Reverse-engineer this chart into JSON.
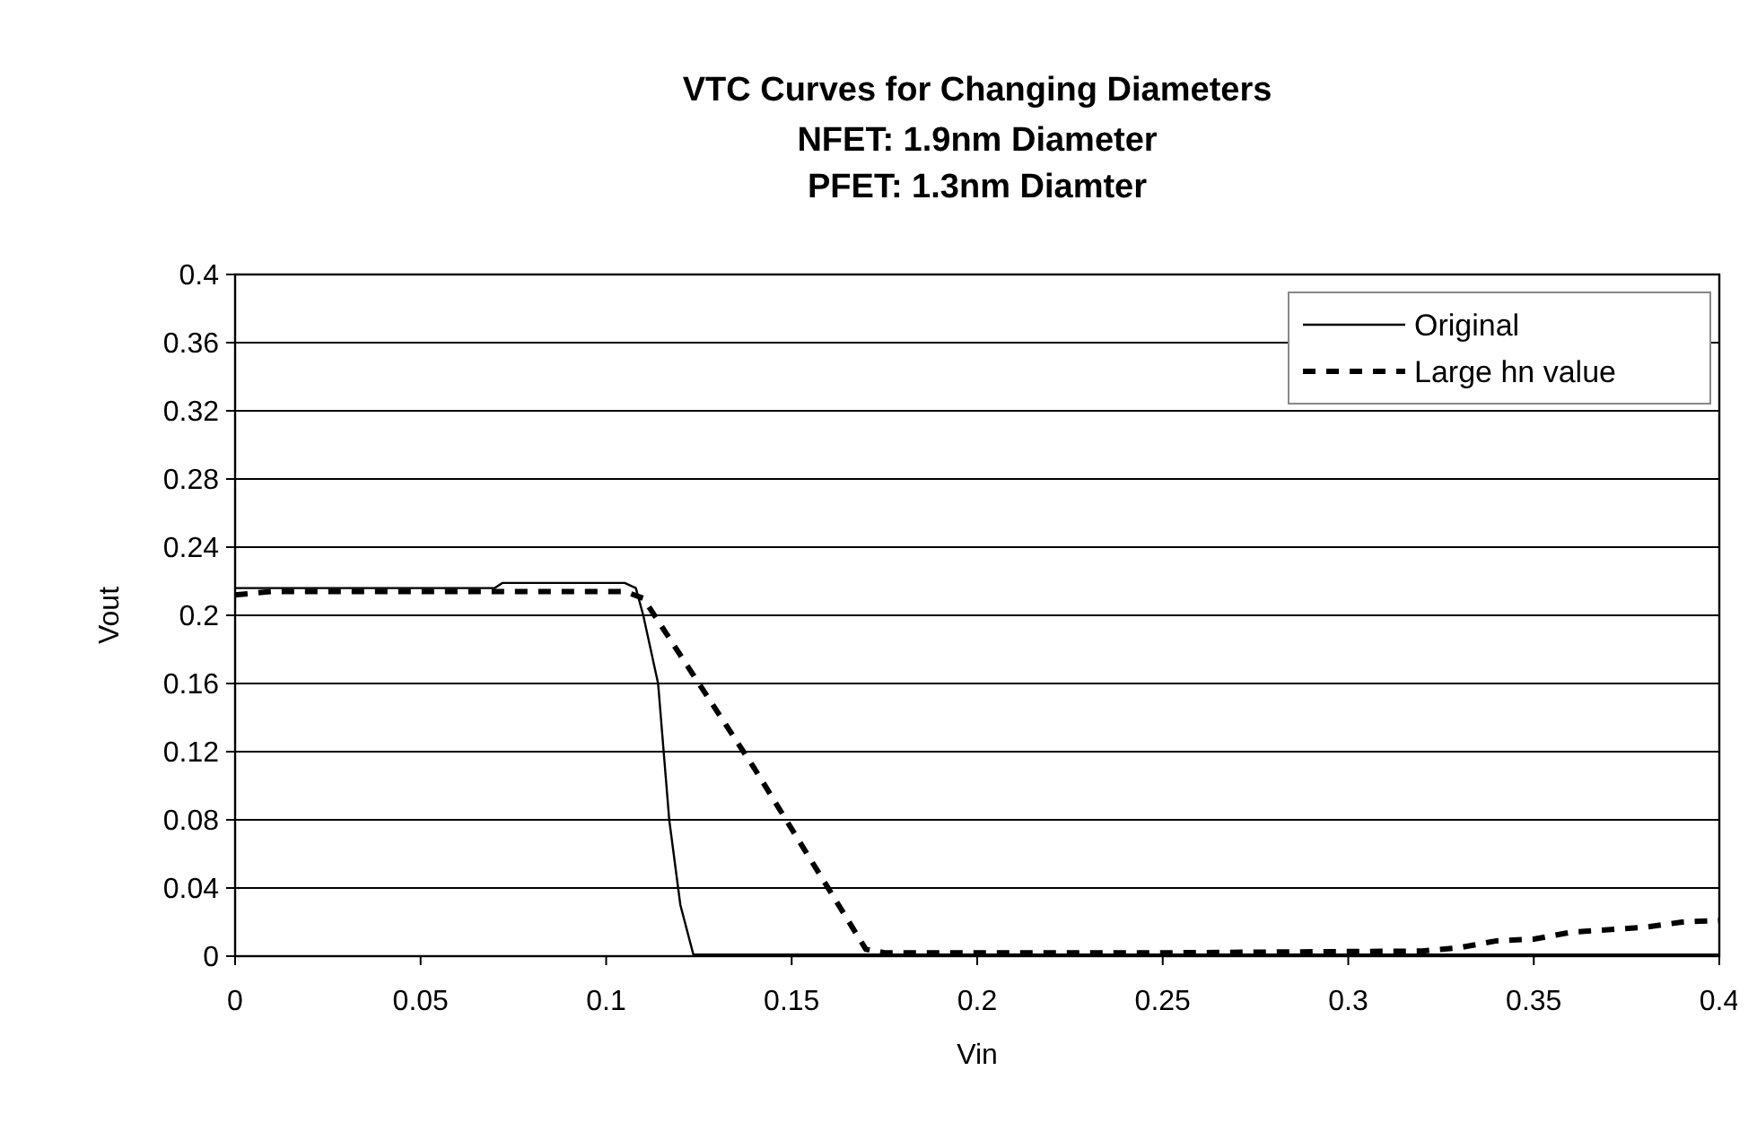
{
  "chart_data": {
    "type": "line",
    "title": "VTC Curves for Changing Diameters",
    "subtitle": "NFET: 1.9nm Diameter\nPFET: 1.3nm Diamter",
    "xlabel": "Vin",
    "ylabel": "Vout",
    "xlim": [
      0,
      0.4
    ],
    "xticks": [
      0,
      0.05,
      0.1,
      0.15,
      0.2,
      0.25,
      0.3,
      0.35,
      0.4
    ],
    "ylim": [
      0,
      0.4
    ],
    "yticks": [
      0,
      0.04,
      0.08,
      0.12,
      0.16,
      0.2,
      0.24,
      0.28,
      0.32,
      0.36,
      0.4
    ],
    "grid": "y",
    "legend": "top right",
    "series": [
      {
        "name": "Original",
        "color": "#000000",
        "line_style": "solid",
        "x": [
          0,
          0.07,
          0.072,
          0.105,
          0.108,
          0.11,
          0.114,
          0.117,
          0.12,
          0.1235,
          0.13,
          0.2,
          0.3,
          0.4
        ],
        "values": [
          0.216,
          0.216,
          0.219,
          0.219,
          0.216,
          0.2,
          0.16,
          0.08,
          0.03,
          0.001,
          0.001,
          0.001,
          0.001,
          0.001
        ]
      },
      {
        "name": "Large hn value",
        "color": "#000000",
        "line_style": "dashed",
        "x": [
          0,
          0.01,
          0.105,
          0.11,
          0.14,
          0.17,
          0.175,
          0.25,
          0.32,
          0.33,
          0.34,
          0.35,
          0.36,
          0.38,
          0.39,
          0.4
        ],
        "values": [
          0.212,
          0.214,
          0.214,
          0.21,
          0.11,
          0.004,
          0.002,
          0.002,
          0.003,
          0.005,
          0.009,
          0.01,
          0.014,
          0.017,
          0.02,
          0.021
        ]
      }
    ]
  }
}
